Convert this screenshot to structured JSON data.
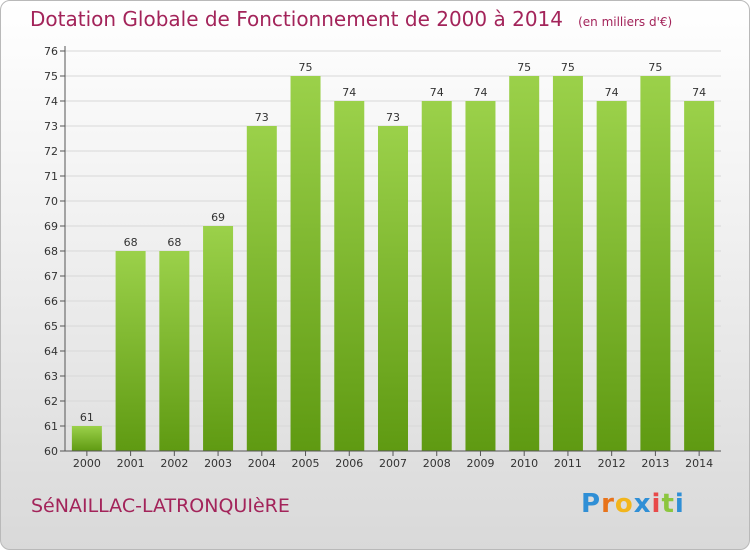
{
  "title": "Dotation Globale de Fonctionnement de 2000 à 2014",
  "unit_note": "(en milliers d'€)",
  "commune": "SéNAILLAC-LATRONQUIèRE",
  "brand": {
    "letters": [
      "P",
      "r",
      "o",
      "x",
      "i",
      "t",
      "i"
    ],
    "colors": [
      "#2f8fd6",
      "#e8731a",
      "#f2b51c",
      "#2f8fd6",
      "#e84a4a",
      "#8cc63f",
      "#2f8fd6"
    ]
  },
  "colors": {
    "title": "#a3245a",
    "bar_top": "#9bd14a",
    "bar_bottom": "#5f9a12",
    "axis": "#555555",
    "grid": "#d8d8d8"
  },
  "chart_data": {
    "type": "bar",
    "categories": [
      "2000",
      "2001",
      "2002",
      "2003",
      "2004",
      "2005",
      "2006",
      "2007",
      "2008",
      "2009",
      "2010",
      "2011",
      "2012",
      "2013",
      "2014"
    ],
    "values": [
      61,
      68,
      68,
      69,
      73,
      75,
      74,
      73,
      74,
      74,
      75,
      75,
      74,
      75,
      74
    ],
    "ylim": [
      60,
      76
    ],
    "yticks": [
      60,
      61,
      62,
      63,
      64,
      65,
      66,
      67,
      68,
      69,
      70,
      71,
      72,
      73,
      74,
      75,
      76
    ],
    "grid": true,
    "data_labels": true
  }
}
